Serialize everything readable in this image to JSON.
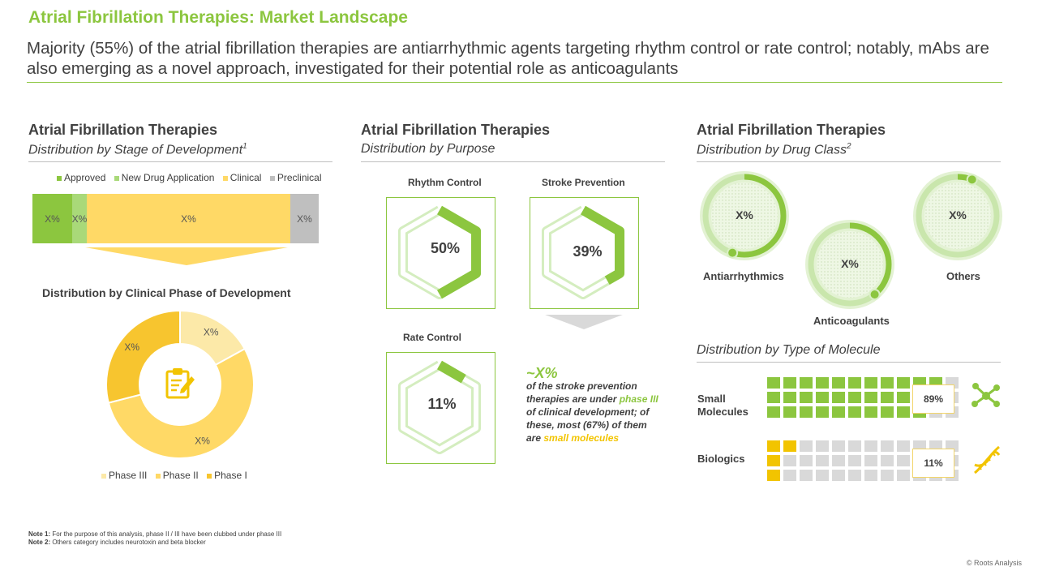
{
  "header": {
    "title": "Atrial Fibrillation Therapies: Market Landscape",
    "subtitle": "Majority (55%) of the atrial fibrillation therapies are antiarrhythmic agents targeting rhythm control or rate control; notably, mAbs are also emerging as a novel approach, investigated for their potential role as anticoagulants"
  },
  "colors": {
    "accent": "#8cc63f",
    "light_green": "#a9d979",
    "yellow": "#ffd966",
    "gold": "#f2c400",
    "gray": "#bfbfbf"
  },
  "panel1": {
    "heading": "Atrial Fibrillation Therapies",
    "subheading": "Distribution by Stage of Development",
    "sub_sup": "1",
    "section2_title": "Distribution by Clinical Phase of Development"
  },
  "panel2": {
    "heading": "Atrial Fibrillation Therapies",
    "subheading": "Distribution by Purpose"
  },
  "panel3": {
    "heading": "Atrial Fibrillation Therapies",
    "subheading": "Distribution by Drug Class",
    "sub_sup": "2",
    "molecule_title": "Distribution by Type of Molecule"
  },
  "chart_data": [
    {
      "type": "bar",
      "orientation": "horizontal-stacked",
      "title": "Distribution by Stage of Development",
      "series": [
        {
          "name": "Approved",
          "value": null,
          "label": "X%",
          "color": "#8cc63f"
        },
        {
          "name": "New Drug Application",
          "value": null,
          "label": "X%",
          "color": "#a9d979"
        },
        {
          "name": "Clinical",
          "value": null,
          "label": "X%",
          "color": "#ffd966"
        },
        {
          "name": "Preclinical",
          "value": null,
          "label": "X%",
          "color": "#bfbfbf"
        }
      ],
      "approx_shares": [
        0.14,
        0.05,
        0.71,
        0.1
      ],
      "legend": "top"
    },
    {
      "type": "pie",
      "variant": "donut",
      "title": "Distribution by Clinical Phase of Development",
      "slices": [
        {
          "name": "Phase III",
          "value": 0.17,
          "label": "X%",
          "color": "#fce9a8"
        },
        {
          "name": "Phase II",
          "value": 0.54,
          "label": "X%",
          "color": "#ffd966"
        },
        {
          "name": "Phase I",
          "value": 0.29,
          "label": "X%",
          "color": "#f7c52f"
        }
      ],
      "legend": "bottom"
    },
    {
      "type": "pie",
      "variant": "hexagon-progress",
      "title": "Distribution by Purpose",
      "slices": [
        {
          "name": "Rhythm Control",
          "value": 50,
          "label": "50%"
        },
        {
          "name": "Stroke Prevention",
          "value": 39,
          "label": "39%"
        },
        {
          "name": "Rate Control",
          "value": 11,
          "label": "11%"
        }
      ]
    },
    {
      "type": "pie",
      "variant": "ring-progress",
      "title": "Distribution by Drug Class",
      "slices": [
        {
          "name": "Antiarrhythmics",
          "value": 0.55,
          "label": "X%"
        },
        {
          "name": "Anticoagulants",
          "value": 0.39,
          "label": "X%"
        },
        {
          "name": "Others",
          "value": 0.06,
          "label": "X%"
        }
      ]
    },
    {
      "type": "table",
      "variant": "waffle",
      "title": "Distribution by Type of Molecule",
      "rows": [
        {
          "name": "Small Molecules",
          "value": 89,
          "label": "89%",
          "color": "#8cc63f"
        },
        {
          "name": "Biologics",
          "value": 11,
          "label": "11%",
          "color": "#f2c400"
        }
      ]
    }
  ],
  "callout": {
    "big": "~X%",
    "line1": "of the stroke prevention therapies are under ",
    "phase": "phase III",
    "line2": " of clinical development; of these, most (67%) of them are ",
    "small": "small molecules"
  },
  "molecules": {
    "small_label": "Small Molecules",
    "bio_label": "Biologics"
  },
  "notes": {
    "note1_label": "Note 1:",
    "note1_text": " For the purpose of this analysis, phase II / III have been clubbed under phase III",
    "note2_label": "Note 2:",
    "note2_text": " Others category includes neurotoxin and beta blocker"
  },
  "copyright": "© Roots Analysis"
}
